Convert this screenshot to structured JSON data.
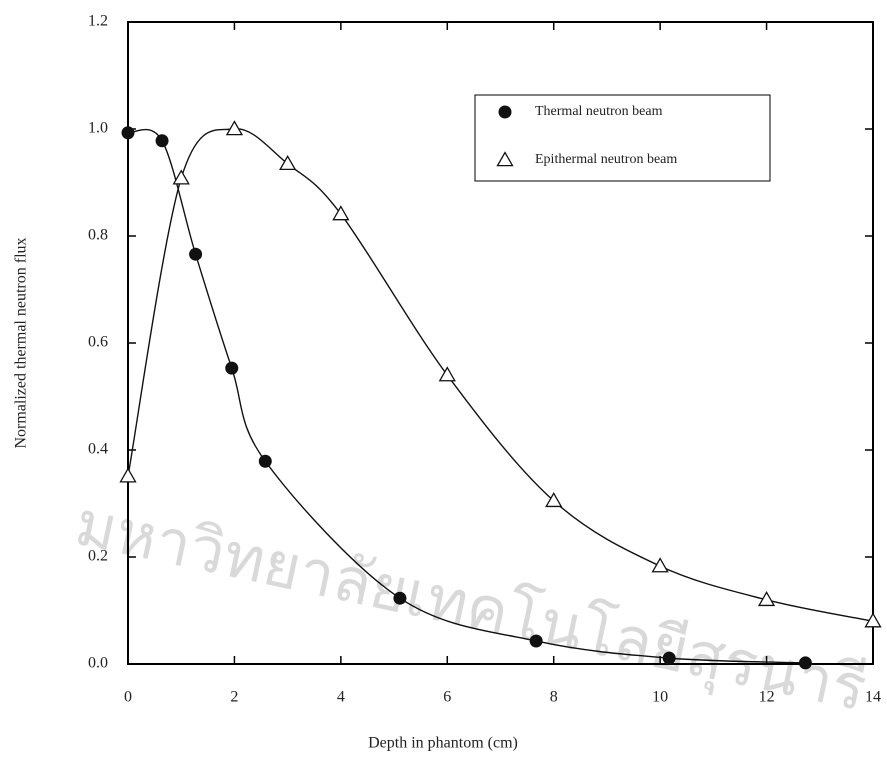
{
  "chart_data": {
    "type": "line",
    "xlabel": "Depth in phantom (cm)",
    "ylabel": "Normalized thermal neutron flux",
    "watermark": "มหาวิทยาลัยเทคโนโลยีสุรนารี",
    "xlim": [
      0,
      14
    ],
    "ylim": [
      0,
      1.2
    ],
    "xticks": [
      0,
      2,
      4,
      6,
      8,
      10,
      12,
      14
    ],
    "yticks": [
      {
        "value": 0,
        "label": "0.0"
      },
      {
        "value": 0.2,
        "label": "0.2"
      },
      {
        "value": 0.4,
        "label": "0.4"
      },
      {
        "value": 0.6,
        "label": "0.6"
      },
      {
        "value": 0.8,
        "label": "0.8"
      },
      {
        "value": 1.0,
        "label": "1.0"
      },
      {
        "value": 1.2,
        "label": "1.2"
      }
    ],
    "legend": "upper right",
    "series": [
      {
        "name": "Thermal neutron beam",
        "color": "#111111",
        "marker": "circle",
        "x": [
          0,
          0.64,
          1.27,
          1.95,
          2.58,
          5.11,
          7.67,
          10.17,
          12.73
        ],
        "values": [
          0.993,
          0.978,
          0.766,
          0.553,
          0.379,
          0.123,
          0.043,
          0.011,
          0.002
        ]
      },
      {
        "name": "Epithermal neutron beam",
        "color": "#111111",
        "marker": "triangle",
        "x": [
          0,
          1,
          2,
          3,
          4,
          6,
          8,
          10,
          12,
          14
        ],
        "values": [
          0.351,
          0.908,
          1.0,
          0.935,
          0.841,
          0.54,
          0.305,
          0.183,
          0.12,
          0.08
        ]
      }
    ]
  }
}
